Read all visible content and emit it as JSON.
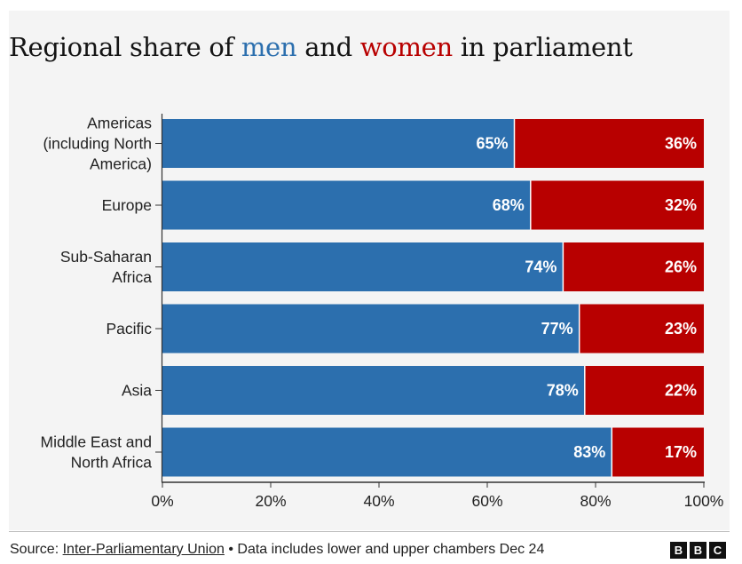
{
  "title": {
    "part1": "Regional share of ",
    "men": "men",
    "part2": " and ",
    "women": "women",
    "part3": " in parliament"
  },
  "colors": {
    "men": "#2c6fae",
    "women": "#b80000"
  },
  "chart_data": {
    "type": "bar",
    "orientation": "horizontal",
    "stacked": true,
    "categories": [
      [
        "Americas",
        "(including North",
        "America)"
      ],
      [
        "Europe"
      ],
      [
        "Sub-Saharan",
        "Africa"
      ],
      [
        "Pacific"
      ],
      [
        "Asia"
      ],
      [
        "Middle East and",
        "North Africa"
      ]
    ],
    "series": [
      {
        "name": "men",
        "values": [
          65,
          68,
          74,
          77,
          78,
          83
        ],
        "labels": [
          "65%",
          "68%",
          "74%",
          "77%",
          "78%",
          "83%"
        ]
      },
      {
        "name": "women",
        "values": [
          36,
          32,
          26,
          23,
          22,
          17
        ],
        "labels": [
          "36%",
          "32%",
          "26%",
          "23%",
          "22%",
          "17%"
        ]
      }
    ],
    "xlim": [
      0,
      100
    ],
    "xticks": [
      "0%",
      "20%",
      "40%",
      "60%",
      "80%",
      "100%"
    ],
    "grid": false,
    "legend": "none (colors named in title)"
  },
  "footer": {
    "source_prefix": "Source: ",
    "source_link": "Inter-Parliamentary Union",
    "source_note": " • Data includes lower and upper chambers Dec 24",
    "logo": [
      "B",
      "B",
      "C"
    ]
  }
}
